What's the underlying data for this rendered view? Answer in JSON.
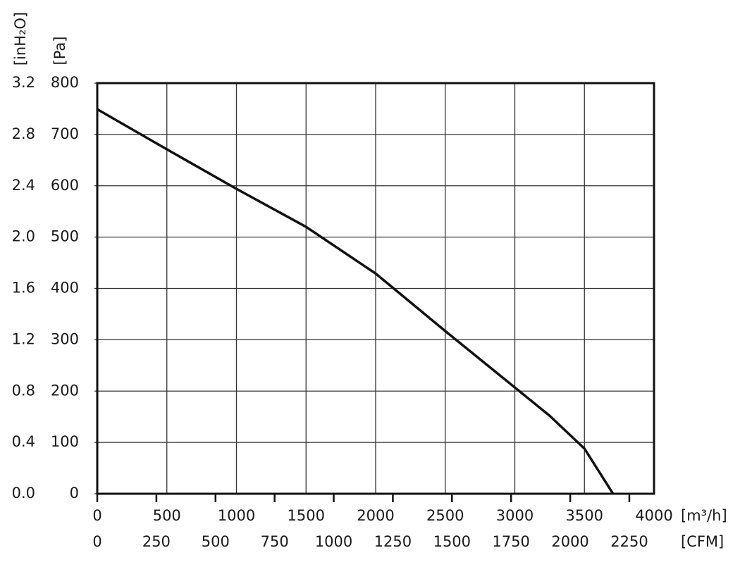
{
  "chart_data": {
    "type": "line",
    "x_label": "[m³/h]",
    "x2_label": "[CFM]",
    "y_label": "[Pa]",
    "y2_label": "[inH₂O]",
    "x": [
      0,
      500,
      1000,
      1500,
      2000,
      2500,
      3000,
      3250,
      3500,
      3706
    ],
    "series": [
      {
        "color": "#111111",
        "values": [
          749,
          671,
          594,
          520,
          429,
          317,
          207,
          152,
          88,
          0
        ]
      }
    ],
    "xlim": [
      0,
      4000
    ],
    "xticks": [
      0,
      500,
      1000,
      1500,
      2000,
      2500,
      3000,
      3500,
      4000
    ],
    "x2lim": [
      0,
      2354.4
    ],
    "x2ticks": [
      0,
      250,
      500,
      750,
      1000,
      1250,
      1500,
      1750,
      2000,
      2250
    ],
    "ylim": [
      0,
      800
    ],
    "yticks": [
      0,
      100,
      200,
      300,
      400,
      500,
      600,
      700,
      800
    ],
    "y2lim": [
      0,
      3.2
    ],
    "y2ticks": [
      {
        "value": 0,
        "label": "0.0"
      },
      0.4,
      0.8,
      1.2,
      1.6,
      {
        "value": 2,
        "label": "2.0"
      },
      2.4,
      2.8,
      3.2
    ],
    "grid": true
  }
}
